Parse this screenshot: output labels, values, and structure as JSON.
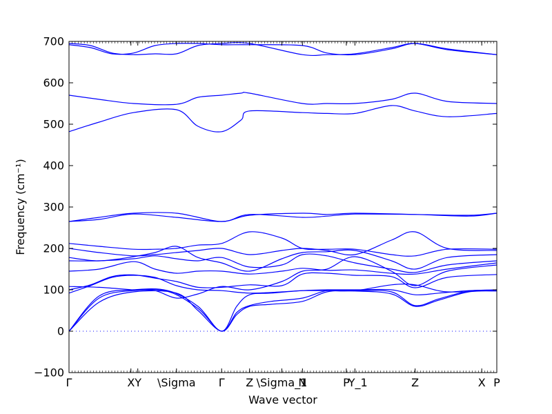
{
  "chart_data": {
    "type": "line",
    "title": "",
    "xlabel": "Wave vector",
    "ylabel": "Frequency (cm⁻¹)",
    "ylim": [
      -100,
      700
    ],
    "yticks": [
      -100,
      0,
      100,
      200,
      300,
      400,
      500,
      600,
      700
    ],
    "grid": false,
    "legend": "none",
    "line_color": "#0000ff",
    "zero_line": {
      "y": 0,
      "style": "dotted"
    },
    "x_ticks": [
      {
        "label": "Γ",
        "x": 0.0
      },
      {
        "label": "X",
        "x": 1.44
      },
      {
        "label": "Y",
        "x": 1.6
      },
      {
        "label": "\\Sigma",
        "x": 2.5
      },
      {
        "label": "Γ",
        "x": 3.55
      },
      {
        "label": "Z",
        "x": 4.2
      },
      {
        "label": "\\Sigma_1",
        "x": 4.95
      },
      {
        "label": "N",
        "x": 5.43
      },
      {
        "label": "P",
        "x": 6.45
      },
      {
        "label": "Y_1",
        "x": 6.65
      },
      {
        "label": "Z",
        "x": 8.05
      },
      {
        "label": "X",
        "x": 9.6
      },
      {
        "label": "P",
        "x": 9.95
      }
    ],
    "x_tick_display": [
      {
        "label": "Γ",
        "x": 0.0
      },
      {
        "label": "XY",
        "x": 1.52
      },
      {
        "label": "\\Sigma",
        "x": 2.5
      },
      {
        "label": "Γ",
        "x": 3.55
      },
      {
        "label": "Z",
        "x": 4.2
      },
      {
        "label": "\\Sigma_1",
        "x": 4.95
      },
      {
        "label": "N",
        "x": 5.43
      },
      {
        "label": "P",
        "x": 6.45
      },
      {
        "label": "Y_1",
        "x": 6.72
      },
      {
        "label": "Z",
        "x": 8.05
      },
      {
        "label": "X",
        "x": 9.6
      },
      {
        "label": "P",
        "x": 9.95
      }
    ],
    "xlim": [
      0,
      9.95
    ],
    "series": [
      {
        "x": [
          0,
          0.7,
          1.5,
          2.5,
          3.0,
          3.55,
          3.9,
          4.2,
          4.7,
          5.43,
          6.0,
          6.65,
          7.5,
          8.05,
          8.6,
          9.3,
          9.95
        ],
        "y": [
          0,
          70,
          95,
          92,
          50,
          0,
          40,
          60,
          65,
          72,
          95,
          97,
          90,
          60,
          75,
          95,
          97
        ]
      },
      {
        "x": [
          0,
          0.7,
          1.5,
          2.3,
          3.0,
          3.55,
          3.9,
          4.2,
          4.7,
          5.43,
          6.0,
          6.65,
          7.5,
          8.05,
          8.6,
          9.3,
          9.95
        ],
        "y": [
          0,
          80,
          98,
          96,
          55,
          0,
          45,
          62,
          72,
          80,
          98,
          98,
          95,
          62,
          78,
          97,
          99
        ]
      },
      {
        "x": [
          0,
          0.7,
          1.5,
          2.3,
          3.0,
          3.55,
          3.9,
          4.2,
          4.7,
          5.43,
          6.0,
          6.65,
          7.5,
          8.05,
          8.6,
          9.3,
          9.95
        ],
        "y": [
          0,
          85,
          100,
          98,
          60,
          0,
          60,
          88,
          92,
          98,
          100,
          100,
          100,
          88,
          92,
          98,
          100
        ]
      },
      {
        "x": [
          0,
          0.5,
          1.0,
          1.5,
          2.0,
          2.5,
          3.0,
          3.55,
          4.2,
          4.95,
          5.43,
          6.0,
          6.65,
          7.5,
          8.05,
          8.8,
          9.95
        ],
        "y": [
          92,
          110,
          130,
          135,
          130,
          110,
          100,
          98,
          92,
          95,
          98,
          98,
          98,
          112,
          112,
          95,
          100
        ]
      },
      {
        "x": [
          0,
          0.5,
          1.0,
          1.5,
          2.0,
          2.5,
          3.0,
          3.55,
          4.2,
          4.95,
          5.43,
          6.0,
          6.65,
          7.5,
          8.05,
          8.8,
          9.95
        ],
        "y": [
          100,
          112,
          132,
          136,
          128,
          120,
          106,
          106,
          112,
          110,
          138,
          140,
          135,
          132,
          105,
          130,
          137
        ]
      },
      {
        "x": [
          0,
          0.7,
          1.5,
          2.0,
          2.5,
          3.0,
          3.55,
          4.2,
          4.95,
          5.43,
          6.0,
          6.65,
          7.5,
          8.05,
          8.8,
          9.95
        ],
        "y": [
          108,
          106,
          100,
          98,
          80,
          90,
          108,
          100,
          120,
          145,
          150,
          180,
          145,
          110,
          145,
          160
        ]
      },
      {
        "x": [
          0,
          0.7,
          1.5,
          2.0,
          2.5,
          3.0,
          3.55,
          4.2,
          4.95,
          5.43,
          6.0,
          6.65,
          7.5,
          8.05,
          8.8,
          9.95
        ],
        "y": [
          145,
          150,
          168,
          150,
          140,
          145,
          145,
          138,
          145,
          152,
          147,
          148,
          140,
          138,
          150,
          165
        ]
      },
      {
        "x": [
          0,
          0.7,
          1.5,
          2.0,
          2.5,
          3.0,
          3.55,
          4.2,
          4.95,
          5.43,
          6.0,
          6.65,
          7.5,
          8.05,
          8.8,
          9.95
        ],
        "y": [
          170,
          170,
          175,
          182,
          175,
          170,
          178,
          155,
          160,
          185,
          182,
          165,
          150,
          142,
          160,
          170
        ]
      },
      {
        "x": [
          0,
          0.7,
          1.5,
          2.0,
          2.5,
          3.0,
          3.55,
          4.2,
          4.95,
          5.43,
          6.0,
          6.65,
          7.5,
          8.05,
          8.8,
          9.95
        ],
        "y": [
          178,
          170,
          180,
          190,
          205,
          178,
          165,
          145,
          175,
          190,
          192,
          195,
          170,
          150,
          178,
          185
        ]
      },
      {
        "x": [
          0,
          0.7,
          1.5,
          2.0,
          2.5,
          3.0,
          3.55,
          4.2,
          4.95,
          5.43,
          6.0,
          6.65,
          7.5,
          8.05,
          8.8,
          9.95
        ],
        "y": [
          200,
          190,
          182,
          185,
          190,
          195,
          200,
          185,
          195,
          200,
          195,
          185,
          220,
          240,
          200,
          195
        ]
      },
      {
        "x": [
          0,
          0.7,
          1.5,
          2.0,
          2.5,
          3.0,
          3.55,
          4.2,
          4.95,
          5.43,
          6.0,
          6.65,
          7.5,
          8.05,
          8.8,
          9.95
        ],
        "y": [
          212,
          205,
          198,
          198,
          200,
          208,
          212,
          240,
          225,
          200,
          198,
          198,
          185,
          182,
          198,
          198
        ]
      },
      {
        "x": [
          0,
          0.7,
          1.5,
          2.5,
          3.55,
          4.2,
          5.43,
          6.0,
          6.65,
          8.05,
          9.3,
          9.95
        ],
        "y": [
          265,
          270,
          283,
          275,
          265,
          280,
          285,
          282,
          285,
          282,
          278,
          285
        ]
      },
      {
        "x": [
          0,
          0.7,
          1.5,
          2.5,
          3.55,
          4.2,
          5.43,
          6.0,
          6.65,
          8.05,
          9.3,
          9.95
        ],
        "y": [
          265,
          275,
          285,
          285,
          265,
          282,
          275,
          278,
          283,
          282,
          280,
          285
        ]
      },
      {
        "x": [
          0,
          0.7,
          1.5,
          2.5,
          3.0,
          3.55,
          4.0,
          4.2,
          5.43,
          6.0,
          6.65,
          7.5,
          8.05,
          8.8,
          9.95
        ],
        "y": [
          482,
          505,
          528,
          535,
          495,
          482,
          510,
          532,
          528,
          526,
          526,
          545,
          532,
          518,
          526
        ]
      },
      {
        "x": [
          0,
          0.7,
          1.5,
          2.5,
          3.0,
          3.55,
          4.0,
          4.2,
          5.43,
          6.0,
          6.65,
          7.5,
          8.05,
          8.8,
          9.95
        ],
        "y": [
          570,
          560,
          550,
          548,
          565,
          570,
          575,
          575,
          550,
          550,
          550,
          560,
          575,
          555,
          550
        ]
      },
      {
        "x": [
          0,
          0.5,
          1.0,
          1.5,
          2.0,
          2.5,
          3.0,
          3.55,
          4.2,
          5.43,
          6.0,
          6.65,
          7.5,
          8.05,
          8.8,
          9.95
        ],
        "y": [
          695,
          690,
          672,
          668,
          670,
          670,
          690,
          695,
          695,
          668,
          668,
          670,
          685,
          695,
          680,
          668
        ]
      },
      {
        "x": [
          0,
          0.5,
          1.0,
          1.5,
          2.0,
          2.5,
          3.0,
          3.55,
          4.2,
          5.43,
          6.0,
          6.65,
          7.5,
          8.05,
          8.8,
          9.95
        ],
        "y": [
          692,
          685,
          670,
          672,
          690,
          695,
          695,
          692,
          692,
          690,
          672,
          668,
          682,
          695,
          682,
          668
        ]
      }
    ]
  }
}
